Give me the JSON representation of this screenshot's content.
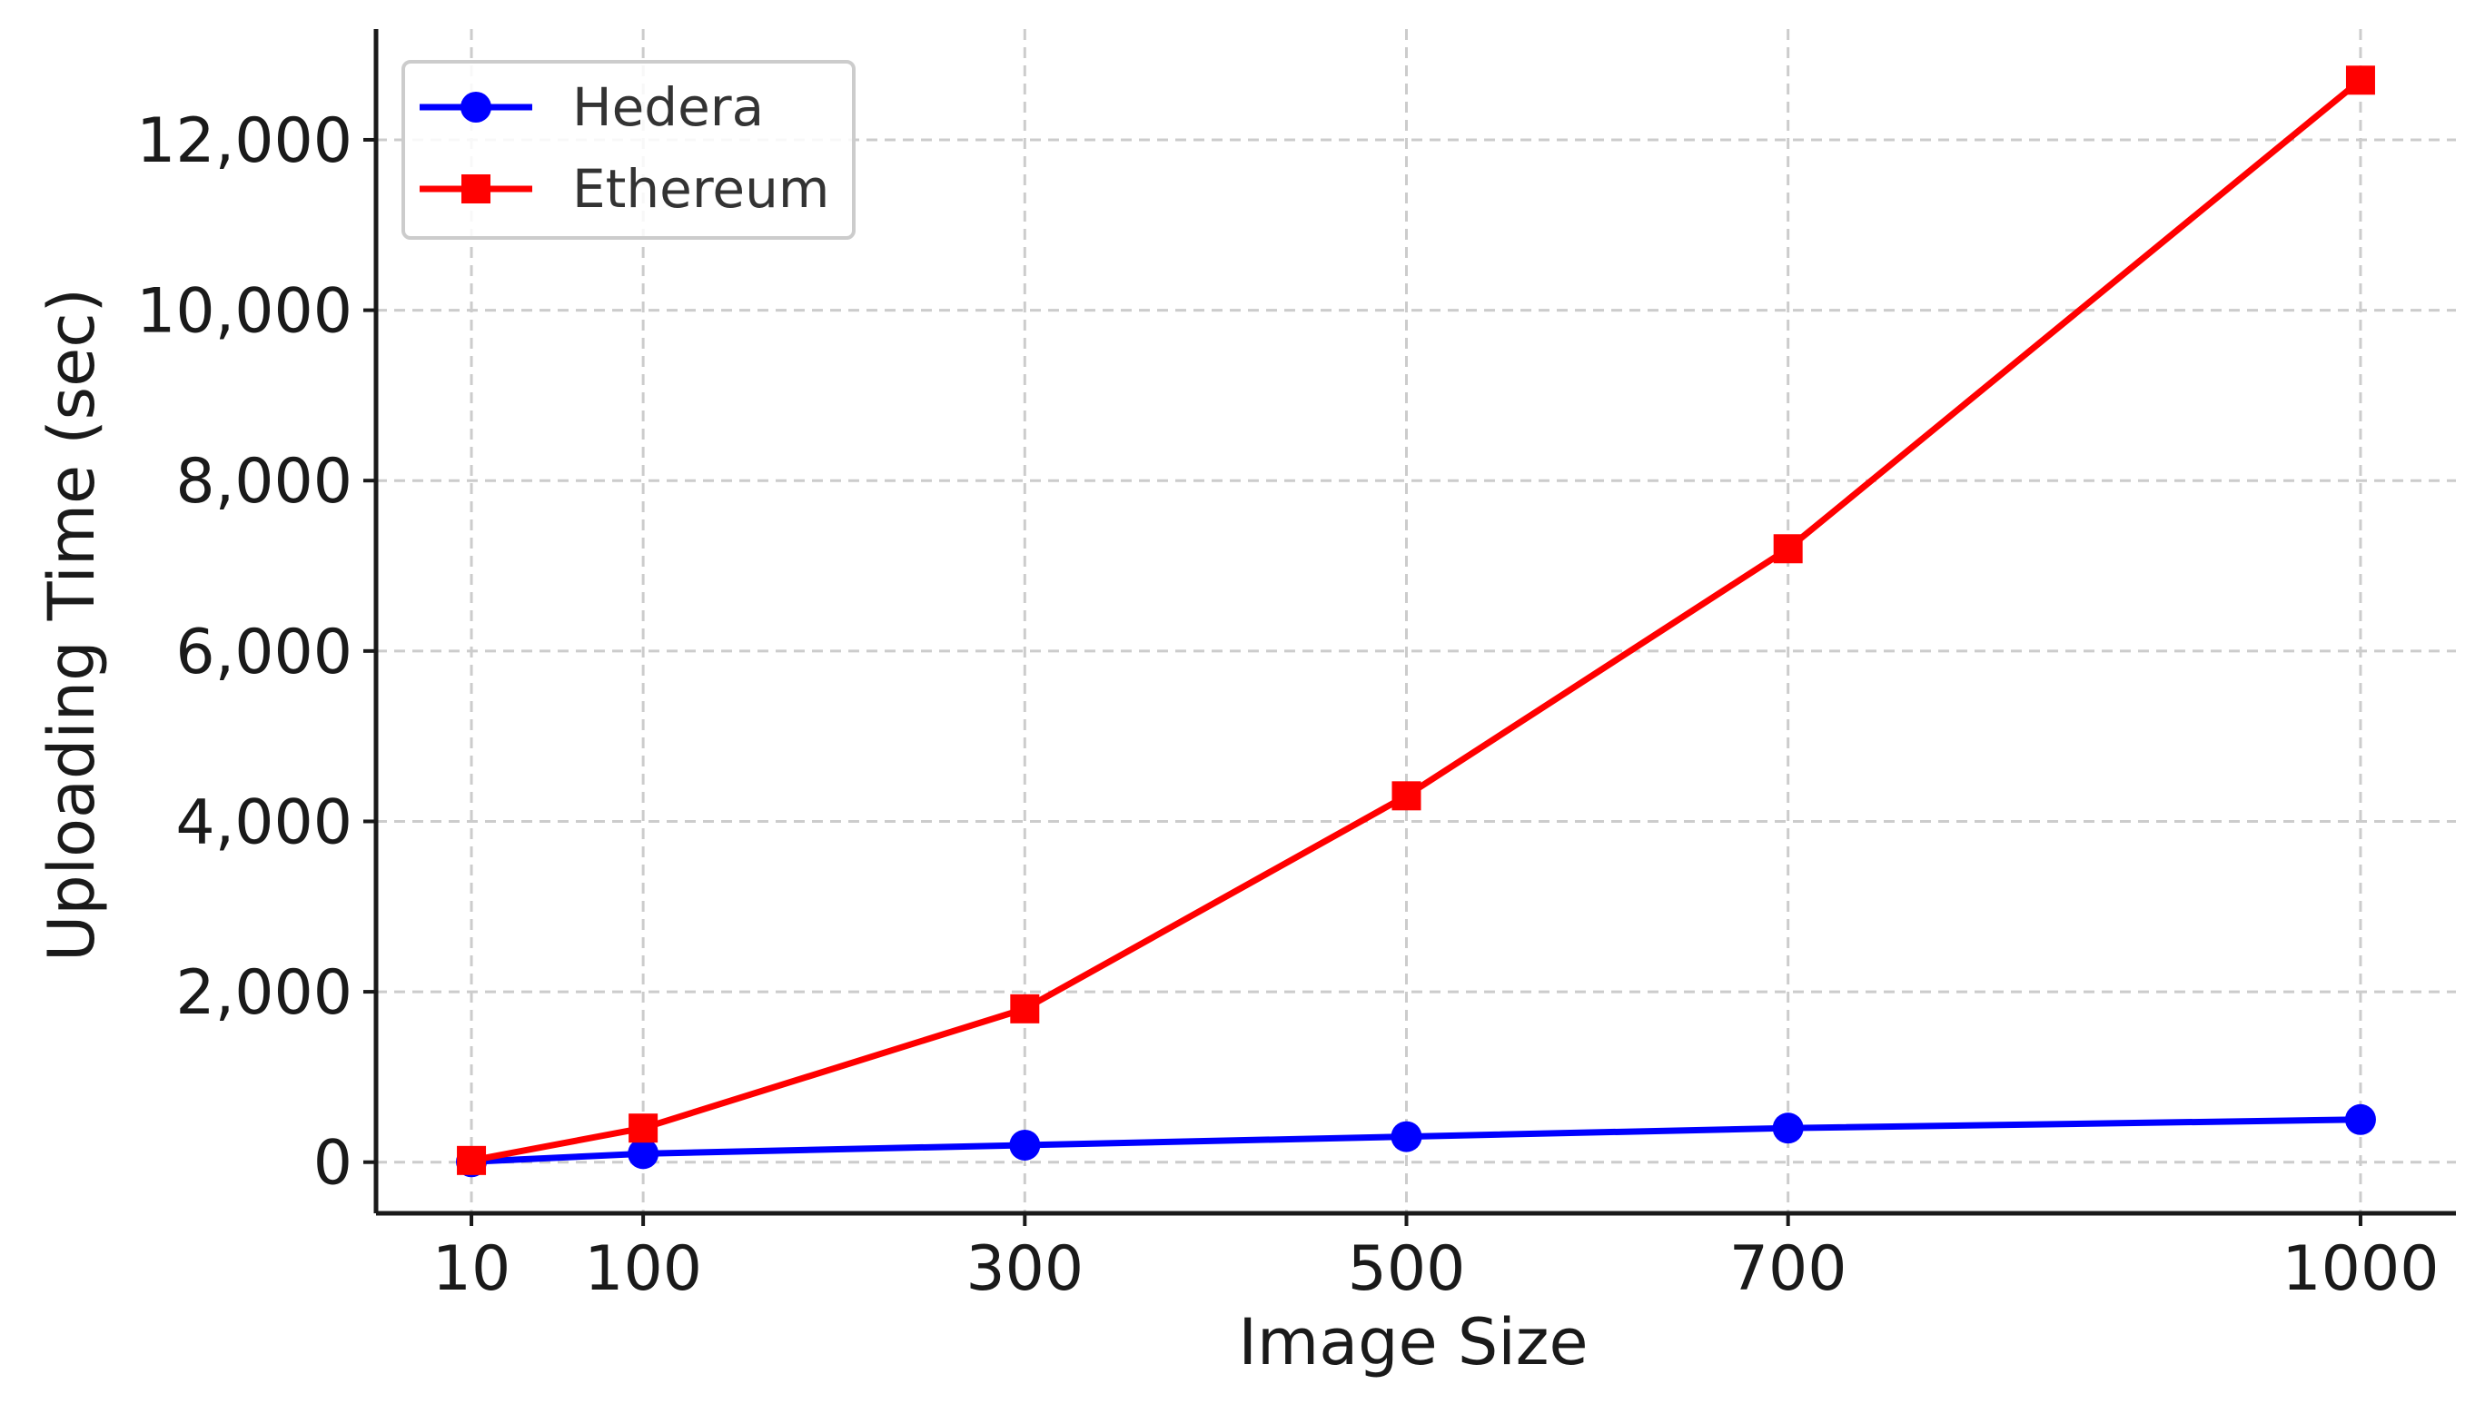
{
  "chart_data": {
    "type": "line",
    "title": "",
    "xlabel": "Image Size",
    "ylabel": "Uploading Time (sec)",
    "x": [
      10,
      100,
      300,
      500,
      700,
      1000
    ],
    "x_tick_labels": [
      "10",
      "100",
      "300",
      "500",
      "700",
      "1000"
    ],
    "xlim": [
      -40,
      1050
    ],
    "ylim": [
      -600,
      13300
    ],
    "y_ticks": [
      0,
      2000,
      4000,
      6000,
      8000,
      10000,
      12000
    ],
    "y_tick_labels": [
      "0",
      "2,000",
      "4,000",
      "6,000",
      "8,000",
      "10,000",
      "12,000"
    ],
    "grid": true,
    "legend_position": "top-left",
    "series": [
      {
        "name": "Hedera",
        "color": "#0000ff",
        "marker": "circle",
        "values": [
          5,
          100,
          200,
          300,
          400,
          500
        ]
      },
      {
        "name": "Ethereum",
        "color": "#ff0000",
        "marker": "square",
        "values": [
          20,
          400,
          1800,
          4300,
          7200,
          12700
        ]
      }
    ]
  }
}
